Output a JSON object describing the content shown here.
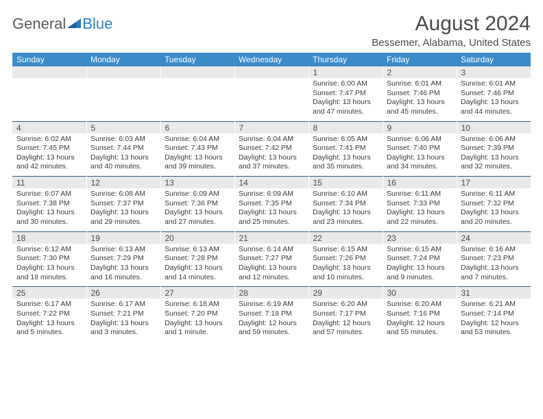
{
  "brand": {
    "word1": "General",
    "word2": "Blue"
  },
  "title": "August 2024",
  "location": "Bessemer, Alabama, United States",
  "colors": {
    "header_bg": "#3b8bc9",
    "header_fg": "#ffffff",
    "daynum_bg": "#e9e9e9",
    "rule": "#3b5a78",
    "text": "#4a4a4a"
  },
  "day_names": [
    "Sunday",
    "Monday",
    "Tuesday",
    "Wednesday",
    "Thursday",
    "Friday",
    "Saturday"
  ],
  "weeks": [
    [
      null,
      null,
      null,
      null,
      {
        "n": "1",
        "sunrise": "6:00 AM",
        "sunset": "7:47 PM",
        "daylight": "13 hours and 47 minutes."
      },
      {
        "n": "2",
        "sunrise": "6:01 AM",
        "sunset": "7:46 PM",
        "daylight": "13 hours and 45 minutes."
      },
      {
        "n": "3",
        "sunrise": "6:01 AM",
        "sunset": "7:46 PM",
        "daylight": "13 hours and 44 minutes."
      }
    ],
    [
      {
        "n": "4",
        "sunrise": "6:02 AM",
        "sunset": "7:45 PM",
        "daylight": "13 hours and 42 minutes."
      },
      {
        "n": "5",
        "sunrise": "6:03 AM",
        "sunset": "7:44 PM",
        "daylight": "13 hours and 40 minutes."
      },
      {
        "n": "6",
        "sunrise": "6:04 AM",
        "sunset": "7:43 PM",
        "daylight": "13 hours and 39 minutes."
      },
      {
        "n": "7",
        "sunrise": "6:04 AM",
        "sunset": "7:42 PM",
        "daylight": "13 hours and 37 minutes."
      },
      {
        "n": "8",
        "sunrise": "6:05 AM",
        "sunset": "7:41 PM",
        "daylight": "13 hours and 35 minutes."
      },
      {
        "n": "9",
        "sunrise": "6:06 AM",
        "sunset": "7:40 PM",
        "daylight": "13 hours and 34 minutes."
      },
      {
        "n": "10",
        "sunrise": "6:06 AM",
        "sunset": "7:39 PM",
        "daylight": "13 hours and 32 minutes."
      }
    ],
    [
      {
        "n": "11",
        "sunrise": "6:07 AM",
        "sunset": "7:38 PM",
        "daylight": "13 hours and 30 minutes."
      },
      {
        "n": "12",
        "sunrise": "6:08 AM",
        "sunset": "7:37 PM",
        "daylight": "13 hours and 29 minutes."
      },
      {
        "n": "13",
        "sunrise": "6:09 AM",
        "sunset": "7:36 PM",
        "daylight": "13 hours and 27 minutes."
      },
      {
        "n": "14",
        "sunrise": "6:09 AM",
        "sunset": "7:35 PM",
        "daylight": "13 hours and 25 minutes."
      },
      {
        "n": "15",
        "sunrise": "6:10 AM",
        "sunset": "7:34 PM",
        "daylight": "13 hours and 23 minutes."
      },
      {
        "n": "16",
        "sunrise": "6:11 AM",
        "sunset": "7:33 PM",
        "daylight": "13 hours and 22 minutes."
      },
      {
        "n": "17",
        "sunrise": "6:11 AM",
        "sunset": "7:32 PM",
        "daylight": "13 hours and 20 minutes."
      }
    ],
    [
      {
        "n": "18",
        "sunrise": "6:12 AM",
        "sunset": "7:30 PM",
        "daylight": "13 hours and 18 minutes."
      },
      {
        "n": "19",
        "sunrise": "6:13 AM",
        "sunset": "7:29 PM",
        "daylight": "13 hours and 16 minutes."
      },
      {
        "n": "20",
        "sunrise": "6:13 AM",
        "sunset": "7:28 PM",
        "daylight": "13 hours and 14 minutes."
      },
      {
        "n": "21",
        "sunrise": "6:14 AM",
        "sunset": "7:27 PM",
        "daylight": "13 hours and 12 minutes."
      },
      {
        "n": "22",
        "sunrise": "6:15 AM",
        "sunset": "7:26 PM",
        "daylight": "13 hours and 10 minutes."
      },
      {
        "n": "23",
        "sunrise": "6:15 AM",
        "sunset": "7:24 PM",
        "daylight": "13 hours and 9 minutes."
      },
      {
        "n": "24",
        "sunrise": "6:16 AM",
        "sunset": "7:23 PM",
        "daylight": "13 hours and 7 minutes."
      }
    ],
    [
      {
        "n": "25",
        "sunrise": "6:17 AM",
        "sunset": "7:22 PM",
        "daylight": "13 hours and 5 minutes."
      },
      {
        "n": "26",
        "sunrise": "6:17 AM",
        "sunset": "7:21 PM",
        "daylight": "13 hours and 3 minutes."
      },
      {
        "n": "27",
        "sunrise": "6:18 AM",
        "sunset": "7:20 PM",
        "daylight": "13 hours and 1 minute."
      },
      {
        "n": "28",
        "sunrise": "6:19 AM",
        "sunset": "7:18 PM",
        "daylight": "12 hours and 59 minutes."
      },
      {
        "n": "29",
        "sunrise": "6:20 AM",
        "sunset": "7:17 PM",
        "daylight": "12 hours and 57 minutes."
      },
      {
        "n": "30",
        "sunrise": "6:20 AM",
        "sunset": "7:16 PM",
        "daylight": "12 hours and 55 minutes."
      },
      {
        "n": "31",
        "sunrise": "6:21 AM",
        "sunset": "7:14 PM",
        "daylight": "12 hours and 53 minutes."
      }
    ]
  ],
  "labels": {
    "sunrise": "Sunrise:",
    "sunset": "Sunset:",
    "daylight": "Daylight:"
  }
}
